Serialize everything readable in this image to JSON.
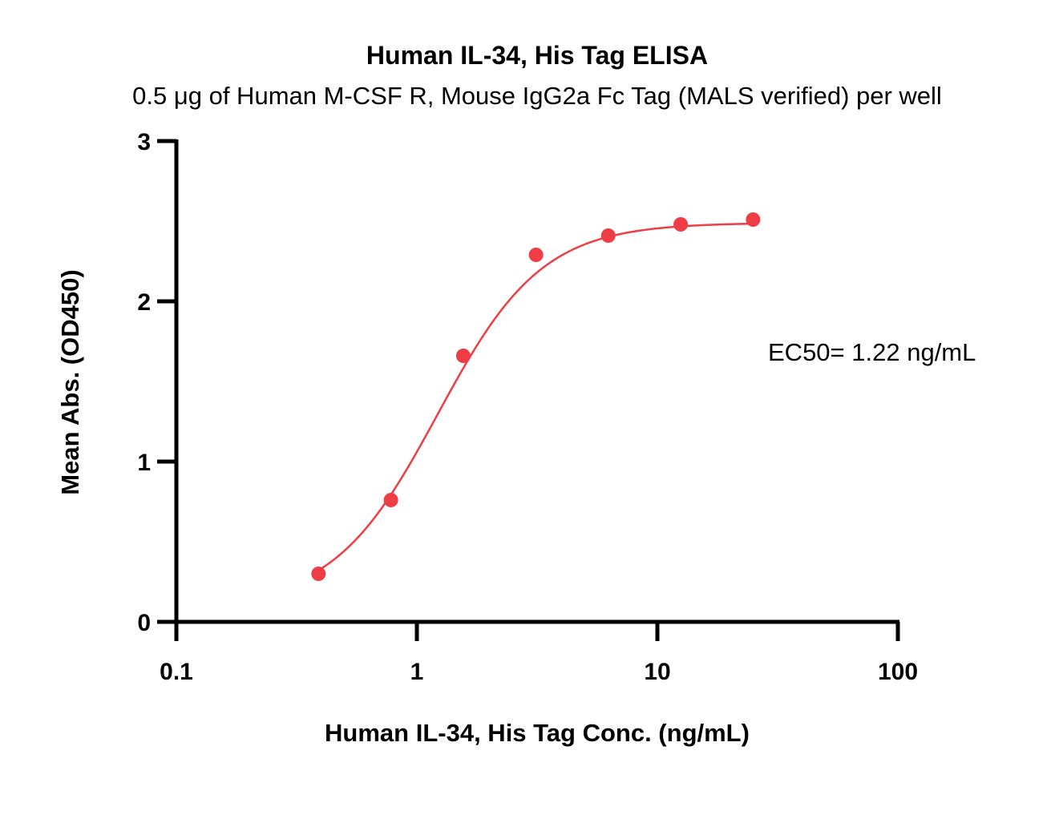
{
  "chart_data": {
    "type": "scatter",
    "title": "Human IL-34, His Tag ELISA",
    "subtitle": "0.5 μg of Human M-CSF R,  Mouse IgG2a Fc Tag (MALS verified) per well",
    "xlabel": "Human IL-34, His Tag Conc. (ng/mL)",
    "ylabel": "Mean Abs. (OD450)",
    "xscale": "log",
    "xlim": [
      0.1,
      100
    ],
    "ylim": [
      0,
      3
    ],
    "x_ticks": [
      "0.1",
      "1",
      "10",
      "100"
    ],
    "y_ticks": [
      "0",
      "1",
      "2",
      "3"
    ],
    "grid": false,
    "series": [
      {
        "color": "#ef3d45",
        "x": [
          0.39,
          0.78,
          1.56,
          3.13,
          6.25,
          12.5,
          25
        ],
        "y": [
          0.3,
          0.76,
          1.66,
          2.29,
          2.41,
          2.48,
          2.51
        ],
        "fit_curve": "4PL",
        "fit_params": {
          "bottom": 0.1,
          "top": 2.49,
          "ec50": 1.22,
          "hill": 2.0
        }
      }
    ],
    "annotations": [
      {
        "text": "EC50= 1.22 ng/mL"
      }
    ]
  }
}
